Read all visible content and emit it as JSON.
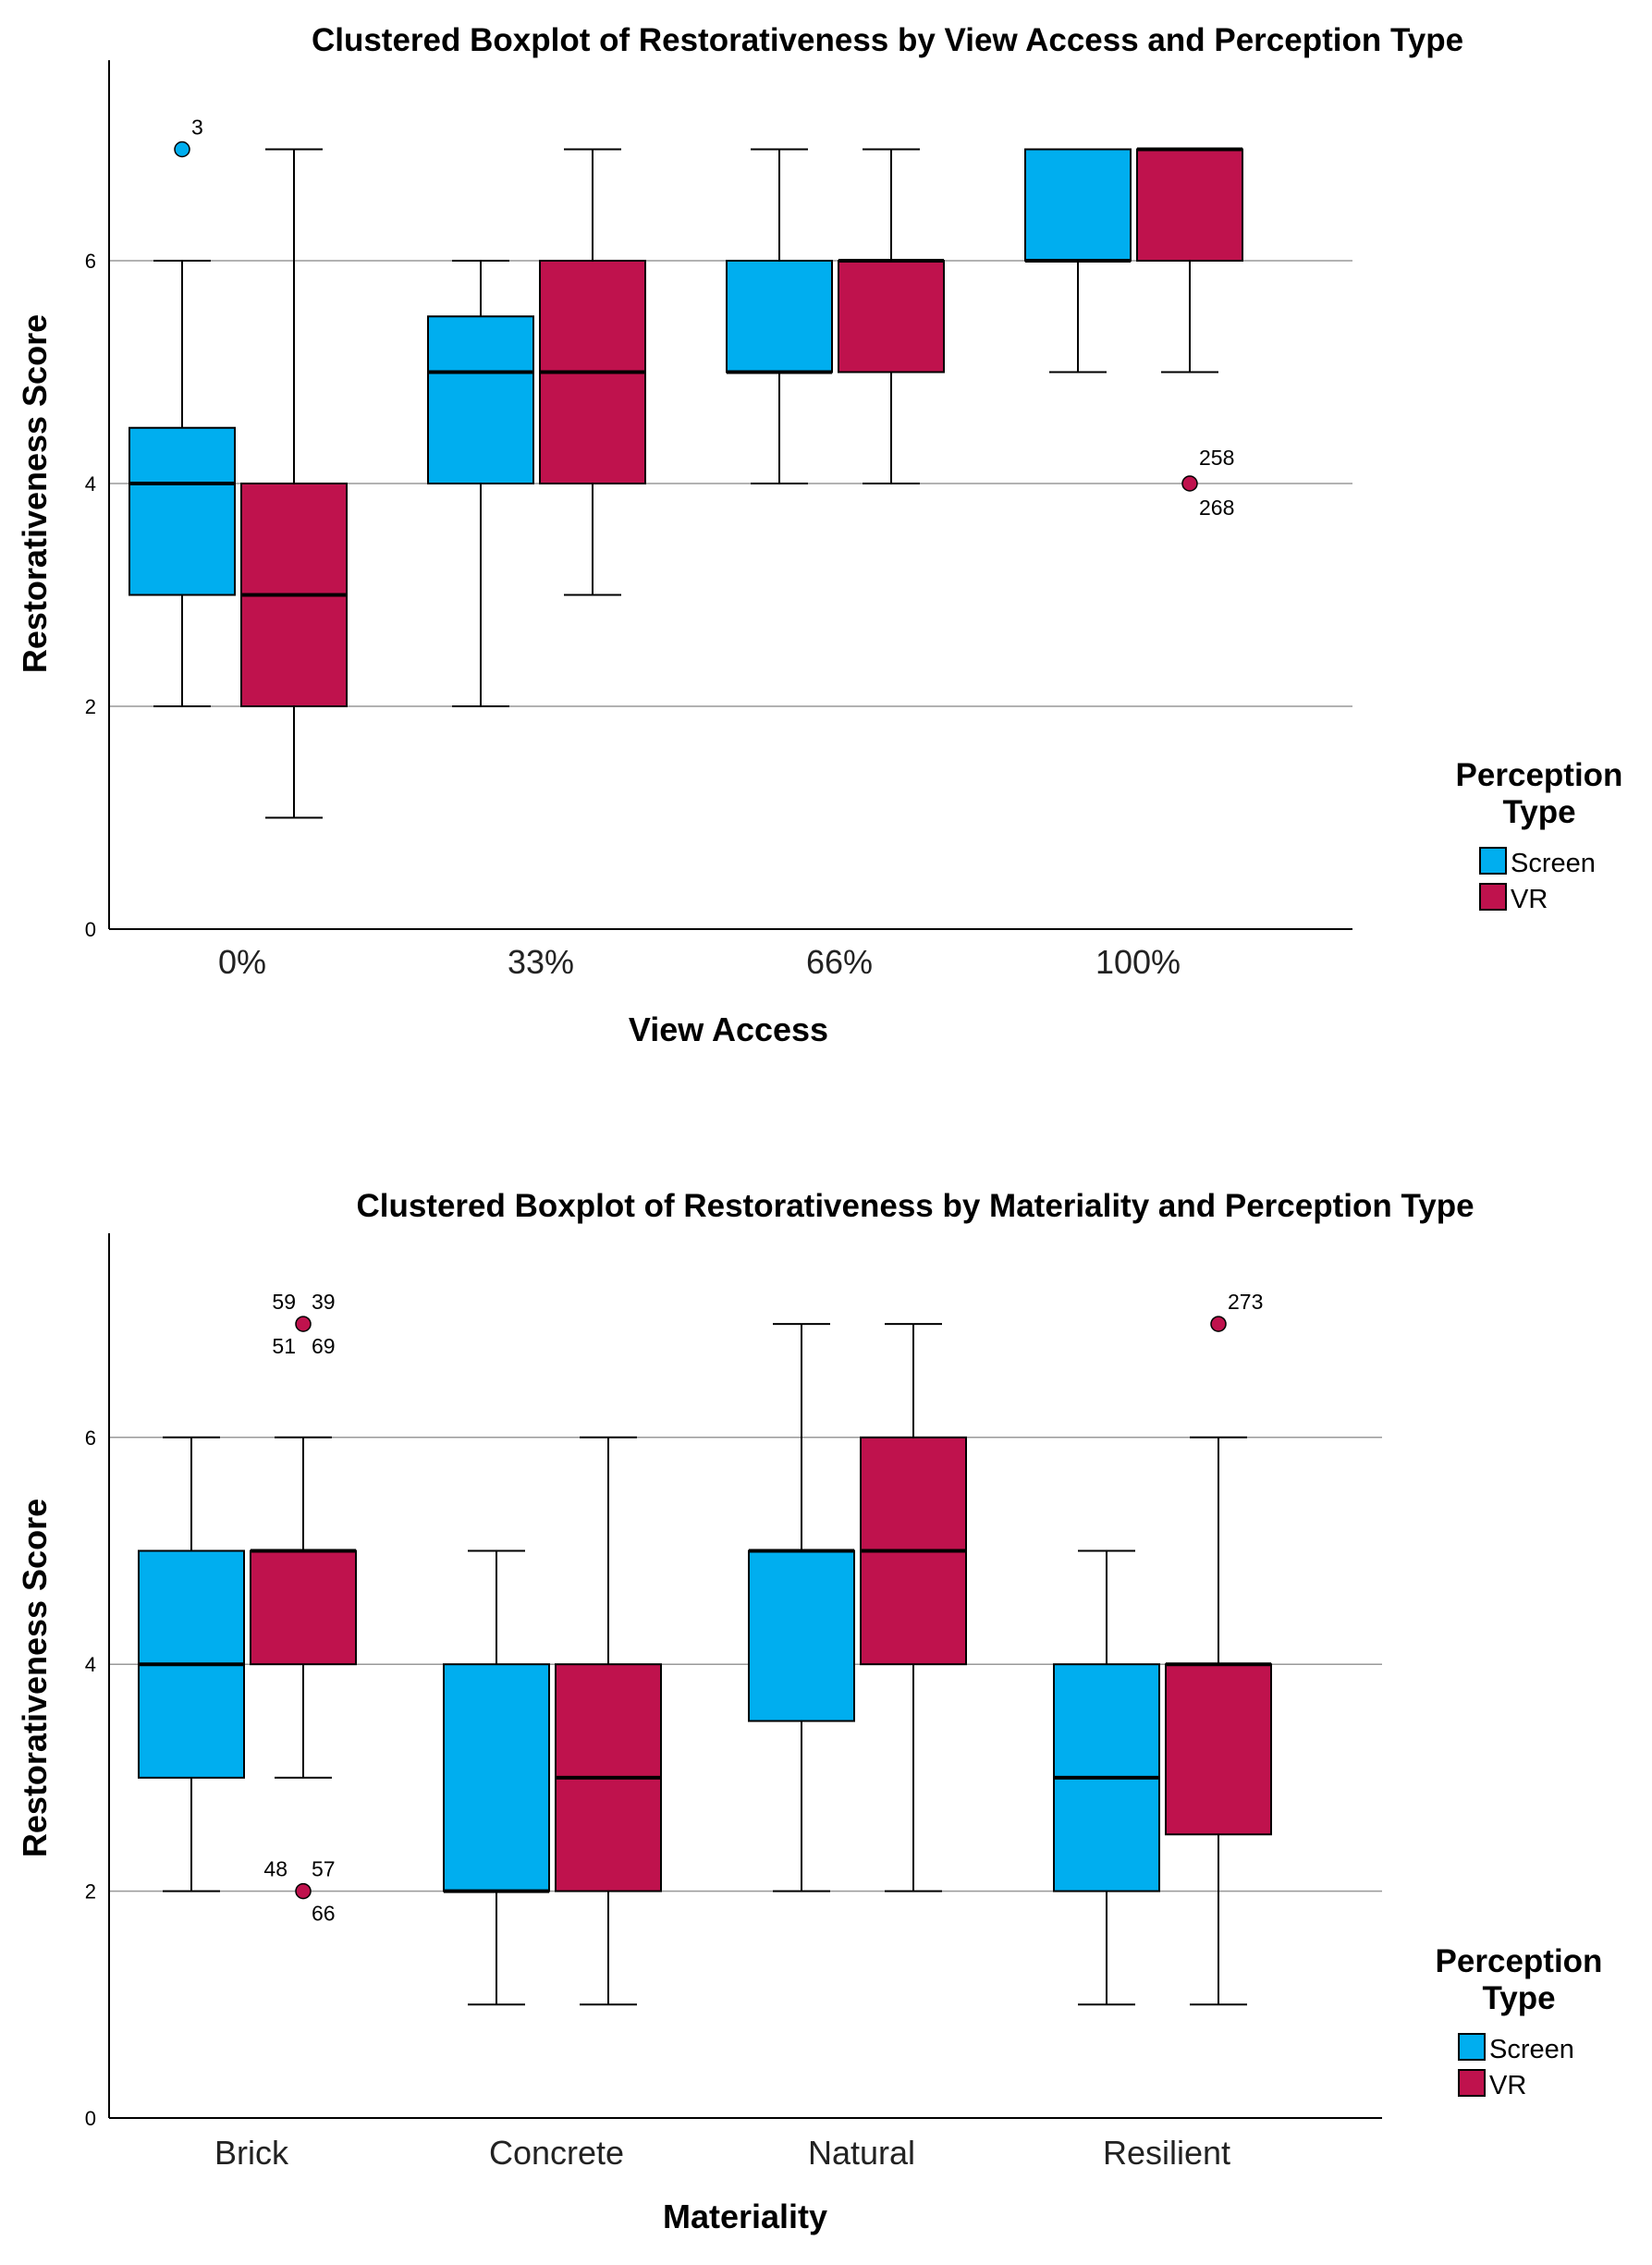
{
  "colors": {
    "screen": "#00aeef",
    "vr": "#bf124d",
    "stroke": "#000000",
    "grid": "#999999"
  },
  "chart_data": [
    {
      "type": "boxplot",
      "title": "Clustered Boxplot of Restorativeness by View Access and Perception Type",
      "xlabel": "View Access",
      "ylabel": "Restorativeness Score",
      "ylim": [
        0,
        7.8
      ],
      "yticks": [
        "0",
        "2",
        "4",
        "6"
      ],
      "gridlines": [
        2,
        4,
        6
      ],
      "categories": [
        "0%",
        "33%",
        "66%",
        "100%"
      ],
      "legend": {
        "title_line1": "Perception",
        "title_line2": "Type",
        "position": "right"
      },
      "series": [
        {
          "name": "Screen",
          "boxes": [
            {
              "min": 2,
              "q1": 3,
              "median": 4,
              "q3": 4.5,
              "max": 6,
              "outliers": [
                {
                  "value": 7,
                  "labels": [
                    "3"
                  ]
                }
              ]
            },
            {
              "min": 2,
              "q1": 4,
              "median": 5,
              "q3": 5.5,
              "max": 6,
              "outliers": []
            },
            {
              "min": 4,
              "q1": 5,
              "median": 5,
              "q3": 6,
              "max": 7,
              "outliers": []
            },
            {
              "min": 5,
              "q1": 6,
              "median": 6,
              "q3": 7,
              "max": 7,
              "outliers": []
            }
          ]
        },
        {
          "name": "VR",
          "boxes": [
            {
              "min": 1,
              "q1": 2,
              "median": 3,
              "q3": 4,
              "max": 7,
              "outliers": []
            },
            {
              "min": 3,
              "q1": 4,
              "median": 5,
              "q3": 6,
              "max": 7,
              "outliers": []
            },
            {
              "min": 4,
              "q1": 5,
              "median": 6,
              "q3": 6,
              "max": 7,
              "outliers": []
            },
            {
              "min": 5,
              "q1": 6,
              "median": 7,
              "q3": 7,
              "max": 7,
              "outliers": [
                {
                  "value": 4,
                  "labels": [
                    "258",
                    "268"
                  ]
                }
              ]
            }
          ]
        }
      ]
    },
    {
      "type": "boxplot",
      "title": "Clustered Boxplot of Restorativeness by Materiality and Perception Type",
      "xlabel": "Materiality",
      "ylabel": "Restorativeness Score",
      "ylim": [
        0,
        7.8
      ],
      "yticks": [
        "0",
        "2",
        "4",
        "6"
      ],
      "gridlines": [
        2,
        4,
        6
      ],
      "categories": [
        "Brick",
        "Concrete",
        "Natural",
        "Resilient"
      ],
      "legend": {
        "title_line1": "Perception",
        "title_line2": "Type",
        "position": "right"
      },
      "series": [
        {
          "name": "Screen",
          "boxes": [
            {
              "min": 2,
              "q1": 3,
              "median": 4,
              "q3": 5,
              "max": 6,
              "outliers": []
            },
            {
              "min": 1,
              "q1": 2,
              "median": 2,
              "q3": 4,
              "max": 5,
              "outliers": []
            },
            {
              "min": 2,
              "q1": 3.5,
              "median": 5,
              "q3": 5,
              "max": 7,
              "outliers": []
            },
            {
              "min": 1,
              "q1": 2,
              "median": 3,
              "q3": 4,
              "max": 5,
              "outliers": []
            }
          ]
        },
        {
          "name": "VR",
          "boxes": [
            {
              "min": 3,
              "q1": 4,
              "median": 5,
              "q3": 5,
              "max": 6,
              "outliers": [
                {
                  "value": 7,
                  "labels": [
                    "59",
                    "39",
                    "51",
                    "69"
                  ]
                },
                {
                  "value": 2,
                  "labels": [
                    "48",
                    "57",
                    "66"
                  ]
                }
              ]
            },
            {
              "min": 1,
              "q1": 2,
              "median": 3,
              "q3": 4,
              "max": 6,
              "outliers": []
            },
            {
              "min": 2,
              "q1": 4,
              "median": 5,
              "q3": 6,
              "max": 7,
              "outliers": []
            },
            {
              "min": 1,
              "q1": 2.5,
              "median": 4,
              "q3": 4,
              "max": 6,
              "outliers": [
                {
                  "value": 7,
                  "labels": [
                    "273"
                  ]
                }
              ]
            }
          ]
        }
      ]
    }
  ]
}
